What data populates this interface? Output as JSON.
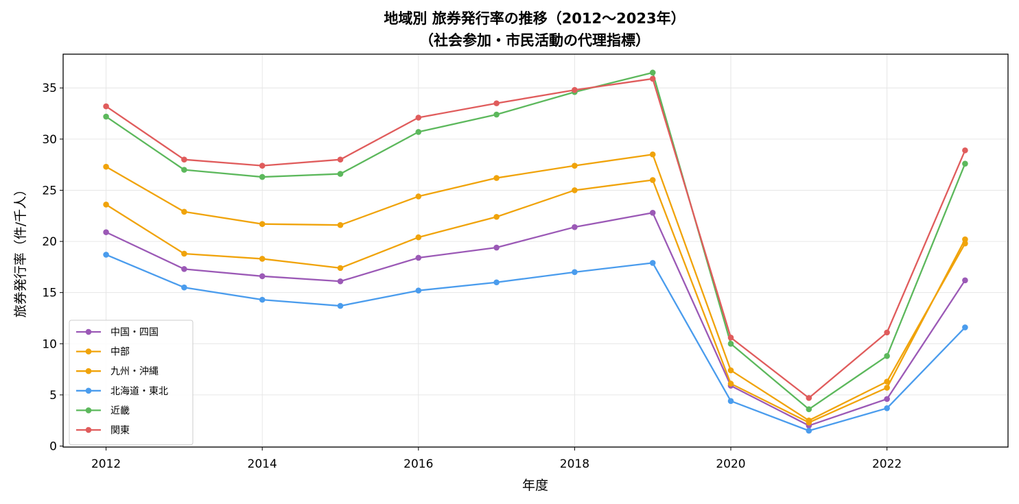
{
  "chart_data": {
    "type": "line",
    "title": "地域別 旅券発行率の推移（2012〜2023年）",
    "subtitle": "（社会参加・市民活動の代理指標）",
    "xlabel": "年度",
    "ylabel": "旅券発行率（件/千人）",
    "x": [
      2012,
      2013,
      2014,
      2015,
      2016,
      2017,
      2018,
      2019,
      2020,
      2021,
      2022,
      2023
    ],
    "xlim": [
      2011.45,
      2023.55
    ],
    "ylim": [
      -0.1,
      38.3
    ],
    "x_ticks": [
      2012,
      2014,
      2016,
      2018,
      2020,
      2022
    ],
    "y_ticks": [
      0,
      5,
      10,
      15,
      20,
      25,
      30,
      35
    ],
    "grid": true,
    "legend_position": "lower-left",
    "series": [
      {
        "name": "中国・四国",
        "color": "#9b59b6",
        "values": [
          20.9,
          17.3,
          16.6,
          16.1,
          18.4,
          19.4,
          21.4,
          22.8,
          5.9,
          2.0,
          4.6,
          16.2
        ]
      },
      {
        "name": "中部",
        "color": "#f0a30a",
        "values": [
          27.3,
          22.9,
          21.7,
          21.6,
          24.4,
          26.2,
          27.4,
          28.5,
          7.4,
          2.5,
          6.3,
          19.8
        ]
      },
      {
        "name": "九州・沖縄",
        "color": "#f0a30a",
        "values": [
          23.6,
          18.8,
          18.3,
          17.4,
          20.4,
          22.4,
          25.0,
          26.0,
          6.1,
          2.3,
          5.7,
          20.2
        ]
      },
      {
        "name": "北海道・東北",
        "color": "#4a9ced",
        "values": [
          18.7,
          15.5,
          14.3,
          13.7,
          15.2,
          16.0,
          17.0,
          17.9,
          4.4,
          1.5,
          3.7,
          11.6
        ]
      },
      {
        "name": "近畿",
        "color": "#5cb85c",
        "values": [
          32.2,
          27.0,
          26.3,
          26.6,
          30.7,
          32.4,
          34.6,
          36.5,
          10.0,
          3.6,
          8.8,
          27.6
        ]
      },
      {
        "name": "関東",
        "color": "#e05c5c",
        "values": [
          33.2,
          28.0,
          27.4,
          28.0,
          32.1,
          33.5,
          34.8,
          35.9,
          10.6,
          4.7,
          11.1,
          28.9
        ]
      }
    ]
  }
}
